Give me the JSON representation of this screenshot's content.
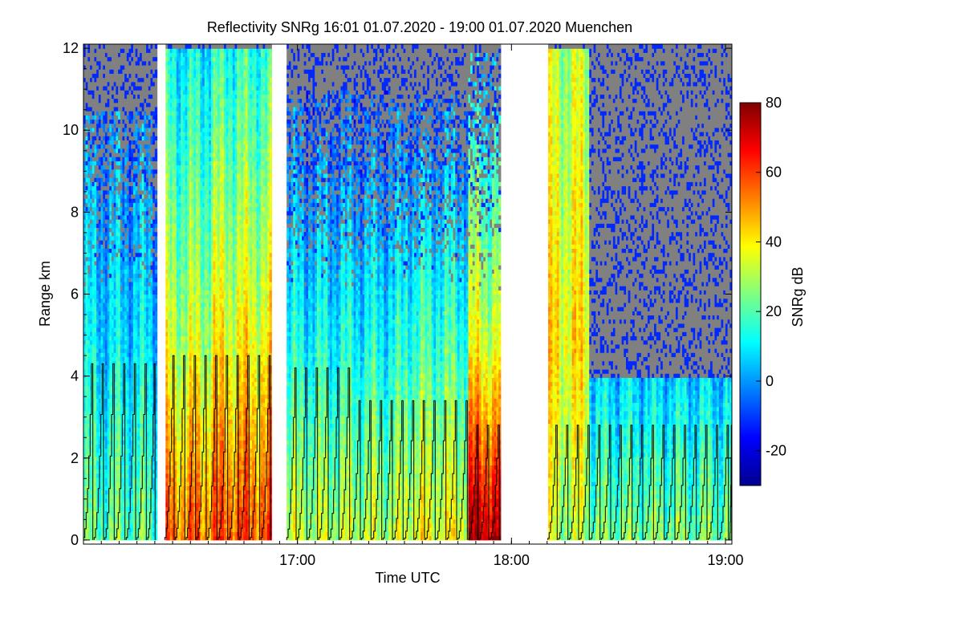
{
  "chart_data": {
    "type": "heatmap",
    "title": "Reflectivity SNRg   16:01 01.07.2020 - 19:00 01.07.2020 Muenchen",
    "xlabel": "Time UTC",
    "ylabel": "Range km",
    "x_unit": "hours UTC",
    "xlim": [
      16.0,
      19.03
    ],
    "ylim": [
      -0.1,
      12.1
    ],
    "x_ticks": [
      {
        "value": 17.0,
        "label": "17:00"
      },
      {
        "value": 18.0,
        "label": "18:00"
      },
      {
        "value": 19.0,
        "label": "19:00"
      }
    ],
    "y_ticks": [
      {
        "value": 0,
        "label": "0"
      },
      {
        "value": 2,
        "label": "2"
      },
      {
        "value": 4,
        "label": "4"
      },
      {
        "value": 6,
        "label": "6"
      },
      {
        "value": 8,
        "label": "8"
      },
      {
        "value": 10,
        "label": "10"
      },
      {
        "value": 12,
        "label": "12"
      }
    ],
    "colorbar": {
      "label": "SNRg dB",
      "range": [
        -30,
        80
      ],
      "ticks": [
        {
          "value": -20,
          "label": "-20"
        },
        {
          "value": 0,
          "label": "0"
        },
        {
          "value": 20,
          "label": "20"
        },
        {
          "value": 40,
          "label": "40"
        },
        {
          "value": 60,
          "label": "60"
        },
        {
          "value": 80,
          "label": "80"
        }
      ],
      "colormap": [
        "#00008f",
        "#0000ff",
        "#0080ff",
        "#00ffff",
        "#80ff80",
        "#ffff00",
        "#ff8000",
        "#ff0000",
        "#800000"
      ]
    },
    "no_data_color": "#808080",
    "data_gaps": [
      [
        16.34,
        16.38
      ],
      [
        16.88,
        16.95
      ],
      [
        17.95,
        18.17
      ]
    ],
    "intensity_regions": [
      {
        "t_start": 16.0,
        "t_end": 16.34,
        "near_ground_db": 22,
        "mid_db": 8,
        "top_db": -5,
        "echo_top_km": 10.5
      },
      {
        "t_start": 16.38,
        "t_end": 16.6,
        "near_ground_db": 55,
        "mid_db": 32,
        "top_db": 10,
        "echo_top_km": 12
      },
      {
        "t_start": 16.6,
        "t_end": 16.88,
        "near_ground_db": 58,
        "mid_db": 38,
        "top_db": 15,
        "echo_top_km": 12
      },
      {
        "t_start": 16.95,
        "t_end": 17.5,
        "near_ground_db": 32,
        "mid_db": 12,
        "top_db": -10,
        "echo_top_km": 11
      },
      {
        "t_start": 17.5,
        "t_end": 17.8,
        "near_ground_db": 38,
        "mid_db": 18,
        "top_db": -8,
        "echo_top_km": 11
      },
      {
        "t_start": 17.8,
        "t_end": 17.95,
        "near_ground_db": 75,
        "mid_db": 35,
        "top_db": 5,
        "echo_top_km": 12
      },
      {
        "t_start": 18.17,
        "t_end": 18.36,
        "near_ground_db": 30,
        "mid_db": 40,
        "top_db": 30,
        "echo_top_km": 12
      },
      {
        "t_start": 18.36,
        "t_end": 19.03,
        "near_ground_db": 25,
        "mid_db": 2,
        "top_db": -12,
        "echo_top_km": 4
      }
    ],
    "overlay_line": {
      "description": "black sawtooth staircase (scan-height pattern)",
      "segments": [
        {
          "t_start": 16.0,
          "t_end": 16.34,
          "peak_km": 4.3
        },
        {
          "t_start": 16.38,
          "t_end": 16.88,
          "peak_km": 4.5
        },
        {
          "t_start": 16.95,
          "t_end": 17.25,
          "peak_km": 4.2
        },
        {
          "t_start": 17.25,
          "t_end": 17.8,
          "peak_km": 3.4
        },
        {
          "t_start": 17.8,
          "t_end": 17.95,
          "peak_km": 2.8
        },
        {
          "t_start": 18.17,
          "t_end": 19.03,
          "peak_km": 2.8
        }
      ],
      "cycle_hours": 0.05
    }
  }
}
